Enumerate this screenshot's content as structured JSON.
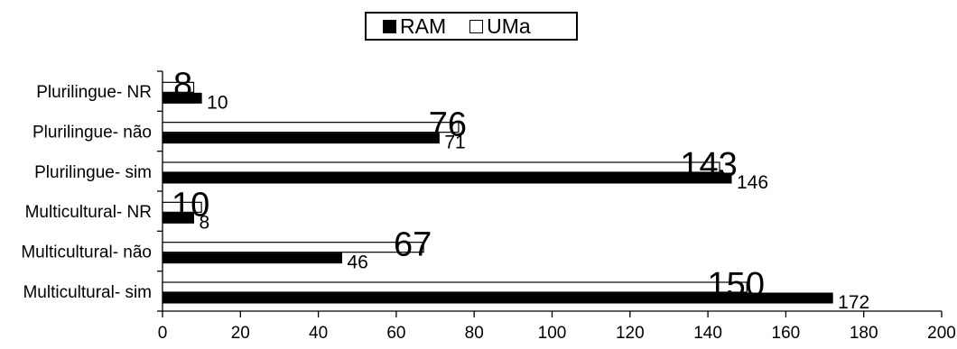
{
  "chart_data": {
    "type": "bar",
    "orientation": "horizontal",
    "categories": [
      "Multicultural- sim",
      "Multicultural- não",
      "Multicultural- NR",
      "Plurilingue- sim",
      "Plurilingue- não",
      "Plurilingue- NR"
    ],
    "series": [
      {
        "name": "RAM",
        "color": "#000000",
        "values": [
          172,
          46,
          8,
          146,
          71,
          10
        ]
      },
      {
        "name": "UMa",
        "color": "#ffffff",
        "values": [
          150,
          67,
          10,
          143,
          76,
          8
        ]
      }
    ],
    "xlim": [
      0,
      200
    ],
    "xticks": [
      "0",
      "20",
      "40",
      "60",
      "80",
      "100",
      "120",
      "140",
      "160",
      "180",
      "200"
    ],
    "legend_position": "top-center",
    "grid": false,
    "title": "",
    "xlabel": "",
    "ylabel": ""
  }
}
